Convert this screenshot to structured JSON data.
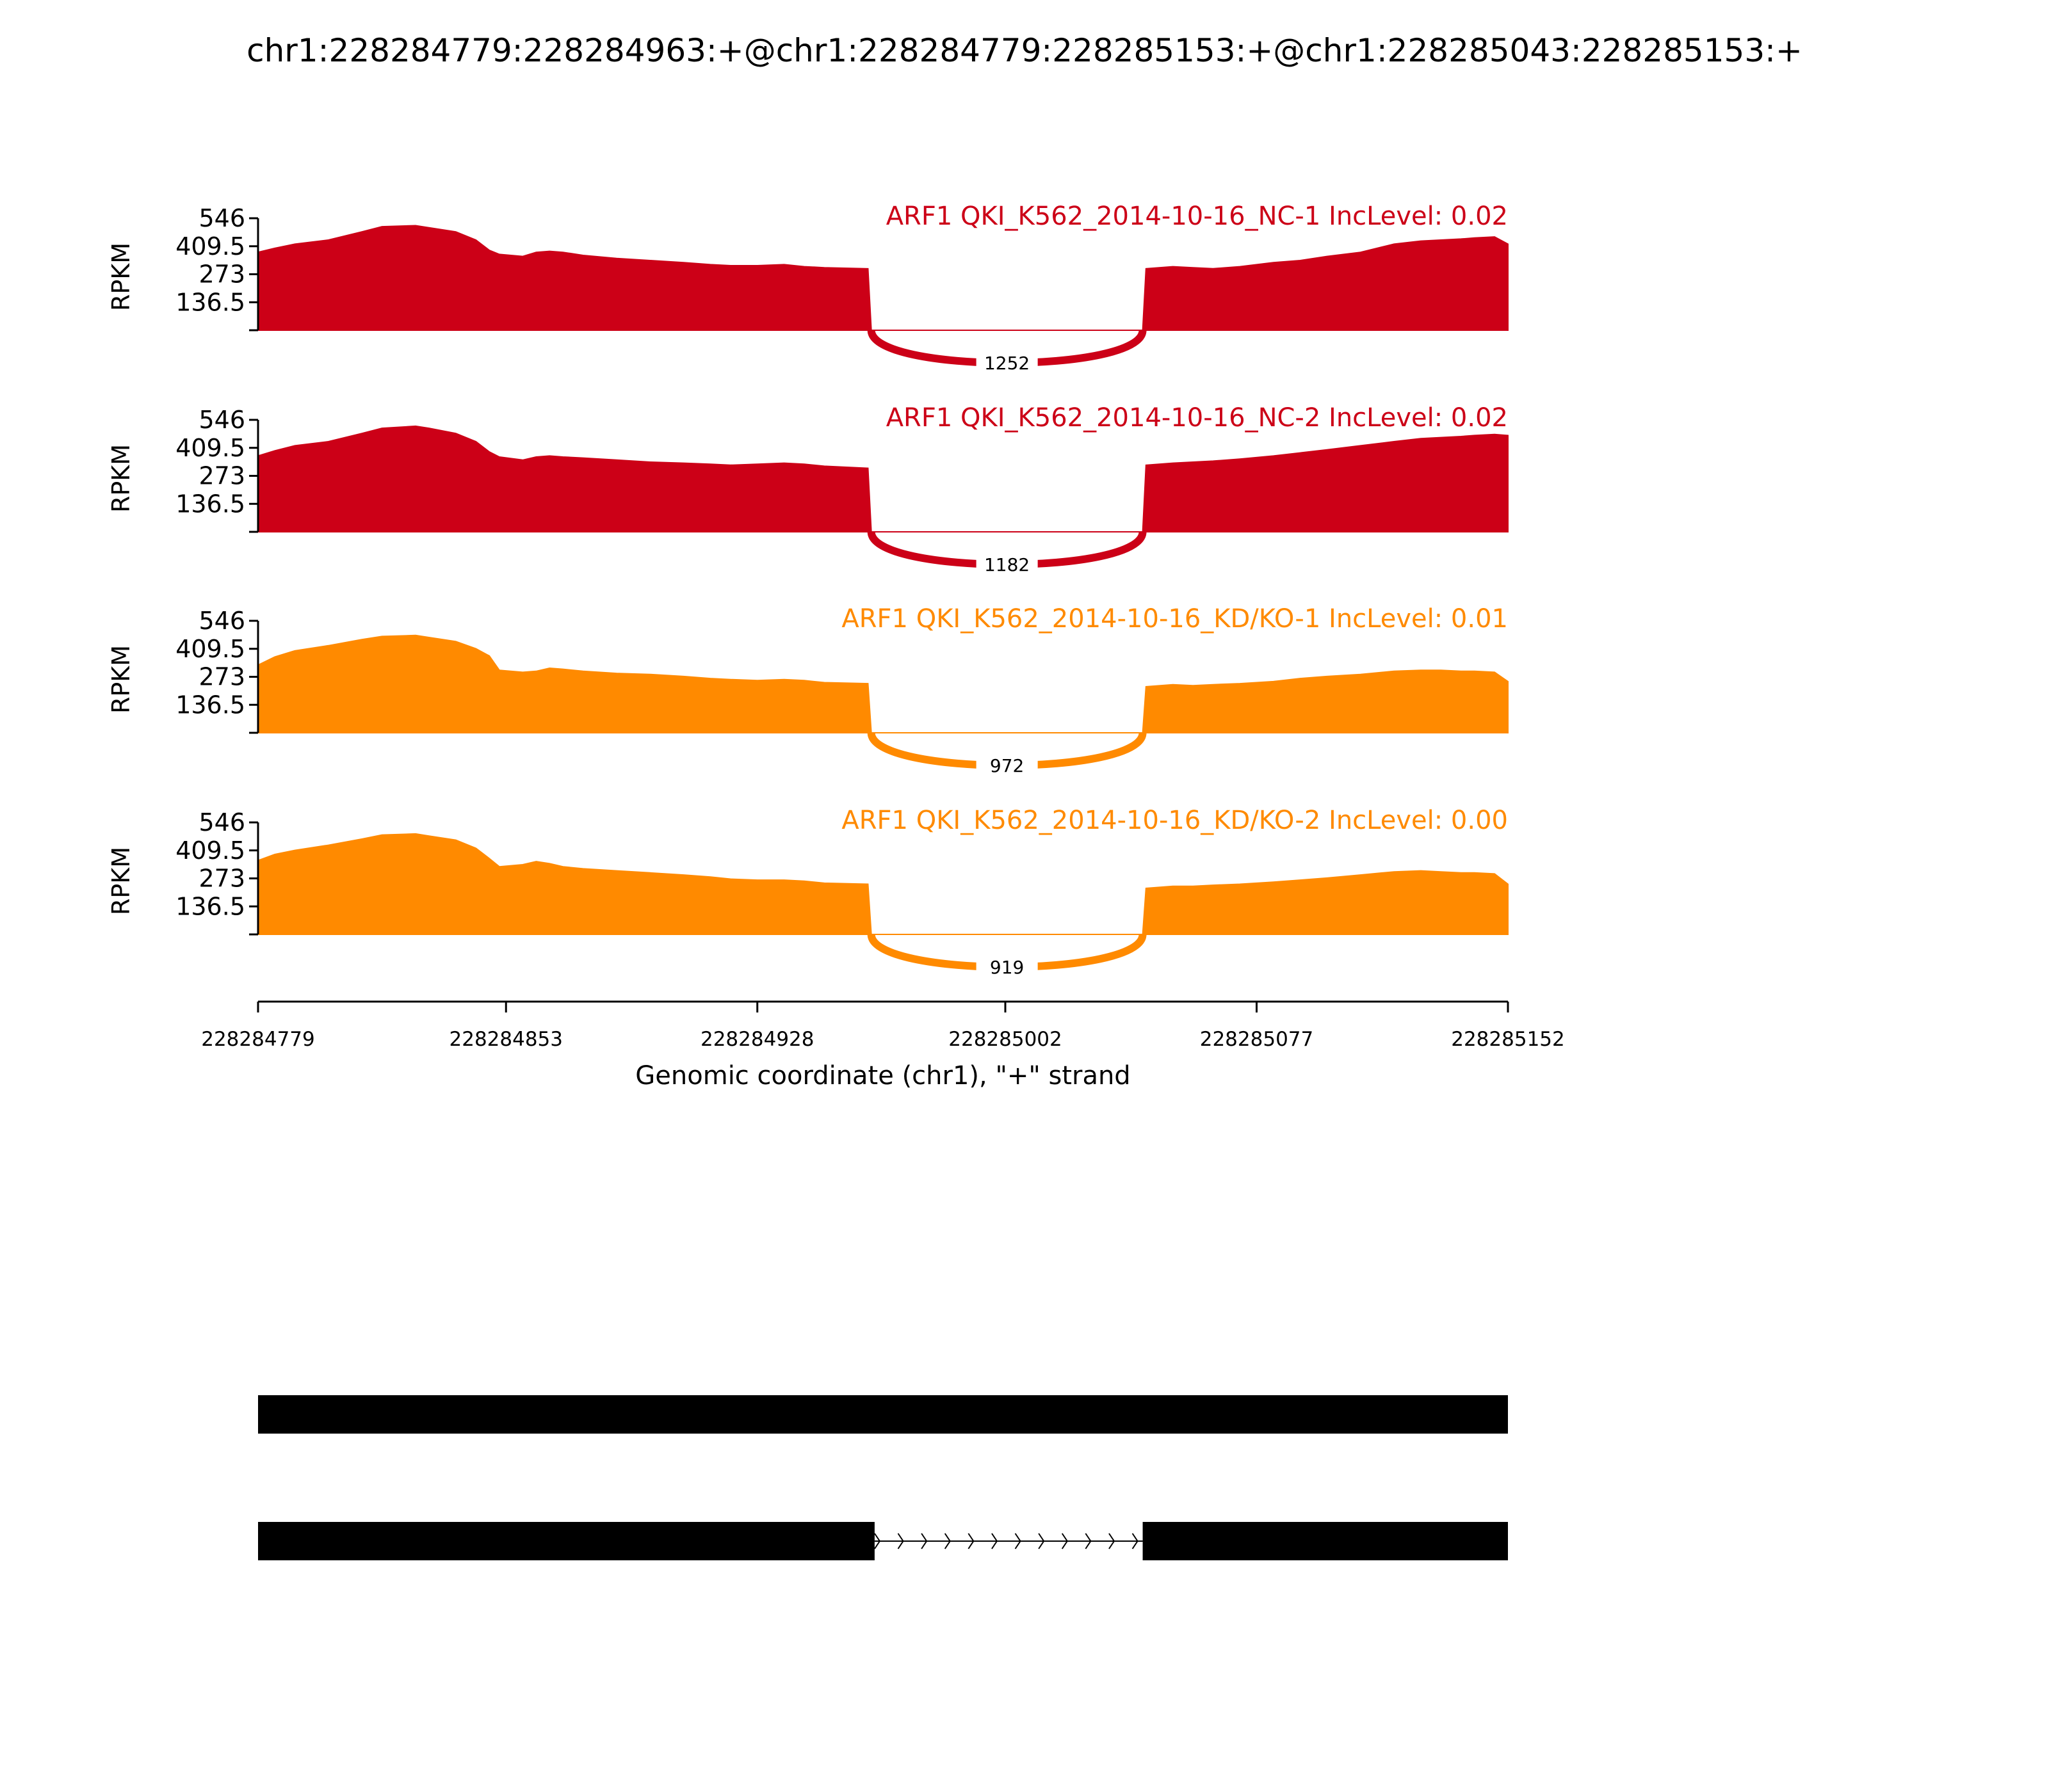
{
  "chart_data": {
    "type": "area",
    "title": "chr1:228284779:228284963:+@chr1:228284779:228285153:+@chr1:228285043:228285153:+",
    "xlabel": "Genomic coordinate (chr1), \"+\" strand",
    "ylabel": "RPKM",
    "xlim": [
      228284779,
      228285152
    ],
    "xticks": [
      "228284779",
      "228284853",
      "228284928",
      "228285002",
      "228285077",
      "228285152"
    ],
    "ylim": [
      0,
      546
    ],
    "yticks": [
      "546",
      "409.5",
      "273",
      "136.5"
    ],
    "colors": {
      "nc": "#cc0017",
      "kd": "#ff8a00"
    },
    "tracks": [
      {
        "name": "ARF1 QKI_K562_2014-10-16_NC-1 IncLevel: 0.02",
        "color": "#cc0017",
        "junction": 1252,
        "x": [
          228284779,
          228284784,
          228284790,
          228284800,
          228284810,
          228284816,
          228284826,
          228284830,
          228284838,
          228284844,
          228284848,
          228284851,
          228284858,
          228284862,
          228284866,
          228284870,
          228284876,
          228284886,
          228284896,
          228284906,
          228284914,
          228284920,
          228284928,
          228284936,
          228284942,
          228284948,
          228284961,
          228284962,
          228284963,
          228285042,
          228285043,
          228285044,
          228285052,
          228285058,
          228285064,
          228285072,
          228285082,
          228285090,
          228285098,
          228285108,
          228285118,
          228285126,
          228285132,
          228285138,
          228285142,
          228285148,
          228285152
        ],
        "y": [
          380,
          400,
          420,
          440,
          480,
          505,
          510,
          500,
          480,
          440,
          390,
          370,
          360,
          380,
          385,
          380,
          365,
          350,
          340,
          330,
          320,
          315,
          315,
          320,
          310,
          305,
          300,
          0,
          0,
          0,
          0,
          300,
          310,
          305,
          300,
          310,
          330,
          340,
          360,
          380,
          420,
          435,
          440,
          445,
          450,
          455,
          420
        ]
      },
      {
        "name": "ARF1 QKI_K562_2014-10-16_NC-2 IncLevel: 0.02",
        "color": "#cc0017",
        "junction": 1182,
        "x": [
          228284779,
          228284784,
          228284790,
          228284800,
          228284810,
          228284816,
          228284826,
          228284830,
          228284838,
          228284844,
          228284848,
          228284851,
          228284858,
          228284862,
          228284866,
          228284870,
          228284876,
          228284886,
          228284896,
          228284906,
          228284914,
          228284920,
          228284928,
          228284936,
          228284942,
          228284948,
          228284961,
          228284962,
          228284963,
          228285042,
          228285043,
          228285044,
          228285052,
          228285058,
          228285064,
          228285072,
          228285082,
          228285090,
          228285098,
          228285108,
          228285118,
          228285126,
          228285132,
          228285138,
          228285142,
          228285148,
          228285152
        ],
        "y": [
          370,
          395,
          420,
          440,
          480,
          505,
          515,
          505,
          480,
          440,
          390,
          365,
          350,
          365,
          370,
          365,
          360,
          350,
          340,
          335,
          330,
          325,
          330,
          335,
          330,
          320,
          310,
          0,
          0,
          0,
          0,
          325,
          335,
          340,
          345,
          355,
          370,
          385,
          400,
          420,
          440,
          455,
          460,
          465,
          470,
          475,
          470
        ]
      },
      {
        "name": "ARF1 QKI_K562_2014-10-16_KD/KO-1 IncLevel: 0.01",
        "color": "#ff8a00",
        "junction": 972,
        "x": [
          228284779,
          228284784,
          228284790,
          228284800,
          228284810,
          228284816,
          228284826,
          228284830,
          228284838,
          228284844,
          228284848,
          228284851,
          228284858,
          228284862,
          228284866,
          228284870,
          228284876,
          228284886,
          228284896,
          228284906,
          228284914,
          228284920,
          228284928,
          228284936,
          228284942,
          228284948,
          228284961,
          228284962,
          228284963,
          228285042,
          228285043,
          228285044,
          228285052,
          228285058,
          228285064,
          228285072,
          228285082,
          228285090,
          228285098,
          228285108,
          228285118,
          228285126,
          228285132,
          228285138,
          228285142,
          228285148,
          228285152
        ],
        "y": [
          330,
          370,
          400,
          425,
          455,
          470,
          475,
          465,
          445,
          410,
          375,
          305,
          295,
          300,
          315,
          310,
          300,
          290,
          285,
          275,
          265,
          260,
          255,
          260,
          255,
          245,
          240,
          0,
          0,
          0,
          0,
          225,
          235,
          230,
          235,
          240,
          250,
          265,
          275,
          285,
          300,
          305,
          305,
          300,
          300,
          295,
          250
        ]
      },
      {
        "name": "ARF1 QKI_K562_2014-10-16_KD/KO-2 IncLevel: 0.00",
        "color": "#ff8a00",
        "junction": 919,
        "x": [
          228284779,
          228284784,
          228284790,
          228284800,
          228284810,
          228284816,
          228284826,
          228284830,
          228284838,
          228284844,
          228284848,
          228284851,
          228284858,
          228284862,
          228284866,
          228284870,
          228284876,
          228284886,
          228284896,
          228284906,
          228284914,
          228284920,
          228284928,
          228284936,
          228284942,
          228284948,
          228284961,
          228284962,
          228284963,
          228285042,
          228285043,
          228285044,
          228285052,
          228285058,
          228285064,
          228285072,
          228285082,
          228285090,
          228285098,
          228285108,
          228285118,
          228285126,
          228285132,
          228285138,
          228285142,
          228285148,
          228285152
        ],
        "y": [
          360,
          390,
          410,
          435,
          465,
          485,
          490,
          480,
          460,
          420,
          370,
          330,
          340,
          355,
          345,
          330,
          320,
          310,
          300,
          290,
          280,
          270,
          265,
          265,
          260,
          250,
          245,
          0,
          0,
          0,
          0,
          225,
          235,
          235,
          240,
          245,
          255,
          265,
          275,
          290,
          305,
          310,
          305,
          300,
          300,
          295,
          245
        ]
      }
    ],
    "isoforms": [
      {
        "exons": [
          [
            228284779,
            228285152
          ]
        ]
      },
      {
        "exons": [
          [
            228284779,
            228284963
          ],
          [
            228285043,
            228285152
          ]
        ],
        "strand": "+"
      }
    ]
  }
}
